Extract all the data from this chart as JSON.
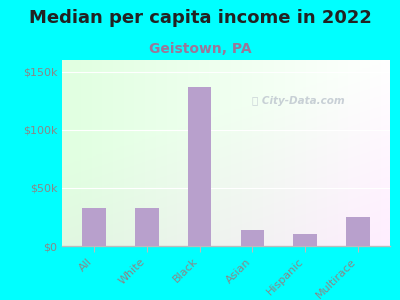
{
  "title": "Median per capita income in 2022",
  "subtitle": "Geistown, PA",
  "categories": [
    "All",
    "White",
    "Black",
    "Asian",
    "Hispanic",
    "Multirace"
  ],
  "values": [
    33000,
    33000,
    137000,
    14000,
    10000,
    25000
  ],
  "bar_color": "#b8a0cc",
  "background_outer": "#00FFFF",
  "title_color": "#222222",
  "subtitle_color": "#997799",
  "tick_color": "#888888",
  "ylabel_ticks": [
    "$0",
    "$50k",
    "$100k",
    "$150k"
  ],
  "ytick_vals": [
    0,
    50000,
    100000,
    150000
  ],
  "ylim": [
    0,
    160000
  ],
  "watermark": "City-Data.com",
  "title_fontsize": 13,
  "subtitle_fontsize": 10,
  "tick_fontsize": 8
}
